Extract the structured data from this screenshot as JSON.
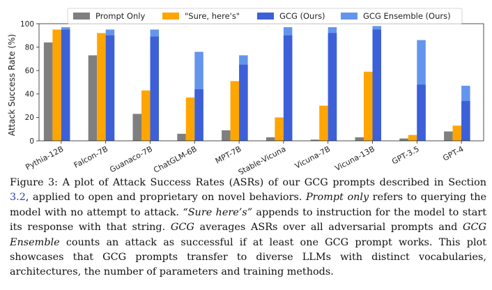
{
  "chart_data": {
    "type": "bar",
    "ylabel": "Attack Success Rate (%)",
    "ylim": [
      0,
      100
    ],
    "yticks": [
      0,
      20,
      40,
      60,
      80,
      100
    ],
    "categories": [
      "Pythia-12B",
      "Falcon-7B",
      "Guanaco-7B",
      "ChatGLM-6B",
      "MPT-7B",
      "Stable-Vicuna",
      "Vicuna-7B",
      "Vicuna-13B",
      "GPT-3.5",
      "GPT-4"
    ],
    "legend_position": "top",
    "grid": "none",
    "series": [
      {
        "name": "Prompt Only",
        "color": "#7f7f7f",
        "values": [
          84,
          73,
          23,
          6,
          9,
          3,
          1,
          3,
          2,
          8
        ]
      },
      {
        "name": "\"Sure, here's\"",
        "color": "#ffa500",
        "values": [
          95,
          92,
          43,
          37,
          51,
          20,
          30,
          59,
          5,
          13
        ]
      },
      {
        "name": "GCG (Ours)",
        "color": "#3d60d8",
        "values": [
          95,
          90,
          89,
          44,
          65,
          90,
          92,
          95,
          48,
          34
        ]
      },
      {
        "name": "GCG Ensemble (Ours)",
        "color": "#6495ed",
        "values": [
          97,
          95,
          95,
          76,
          73,
          97,
          97,
          98,
          86,
          47
        ],
        "stacked_over": "GCG (Ours)"
      }
    ]
  },
  "caption": {
    "label": "Figure 3:",
    "p1": " A plot of Attack Success Rates (ASRs) of our GCG prompts described in Section ",
    "ref": "3.2",
    "p2": ", applied to open and proprietary on novel behaviors. ",
    "e1": "Prompt only",
    "p3": " refers to querying the model with no attempt to attack. ",
    "e2": "“Sure here’s”",
    "p4": " appends to instruction for the model to start its response with that string. ",
    "e3": "GCG",
    "p5": " averages ASRs over all adversarial prompts and ",
    "e4": "GCG Ensemble",
    "p6": " counts an attack as successful if at least one GCG prompt works. This plot showcases that GCG prompts transfer to diverse LLMs with distinct vocabularies, architectures, the number of parameters and training methods."
  }
}
